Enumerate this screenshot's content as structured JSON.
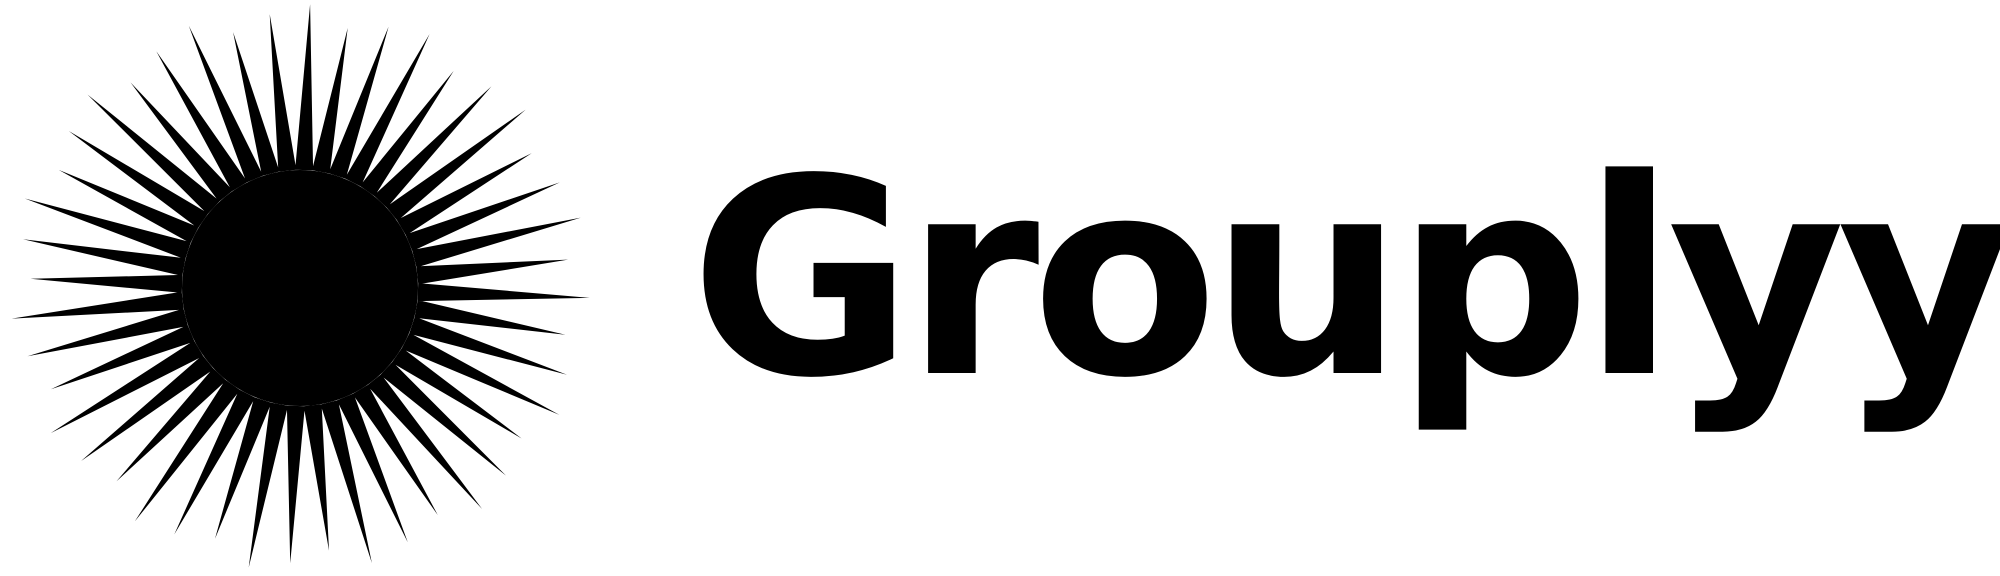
{
  "logo": {
    "brand_name": "Grouplyy.",
    "symbol_icon": "starburst-icon",
    "colors": {
      "mark": "#000000",
      "background": "#ffffff"
    }
  }
}
